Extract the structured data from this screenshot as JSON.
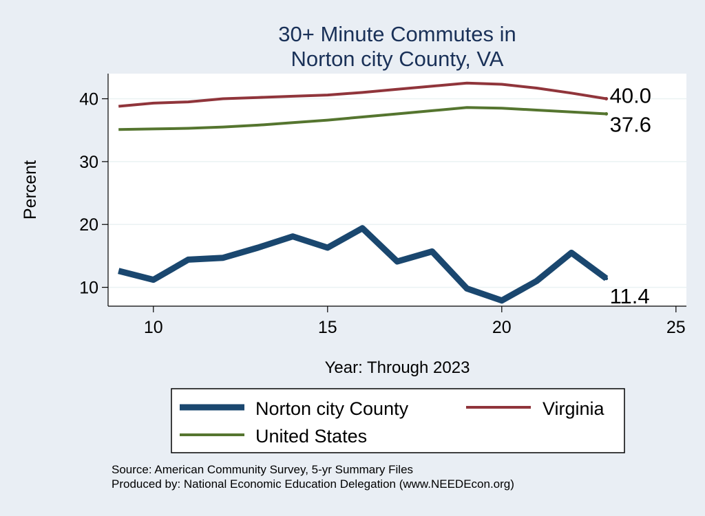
{
  "chart_data": {
    "type": "line",
    "title_lines": [
      "30+ Minute Commutes in",
      "Norton city County, VA"
    ],
    "xlabel": "Year: Through 2023",
    "ylabel": "Percent",
    "xlim": [
      8.7,
      25.3
    ],
    "ylim": [
      7.0,
      44.0
    ],
    "x_ticks": [
      10,
      15,
      20,
      25
    ],
    "y_ticks": [
      10,
      20,
      30,
      40
    ],
    "grid": "horizontal",
    "legend_position": "bottom",
    "x": [
      9,
      10,
      11,
      12,
      13,
      14,
      15,
      16,
      17,
      18,
      19,
      20,
      21,
      22,
      23
    ],
    "series": [
      {
        "name": "Norton city County",
        "color": "#1a476f",
        "values": [
          12.6,
          11.2,
          14.4,
          14.7,
          16.3,
          18.1,
          16.3,
          19.4,
          14.1,
          15.7,
          9.8,
          7.9,
          11.0,
          15.5,
          11.4
        ],
        "end_label": "11.4"
      },
      {
        "name": "Virginia",
        "color": "#90353b",
        "values": [
          38.8,
          39.3,
          39.5,
          40.0,
          40.2,
          40.4,
          40.6,
          41.0,
          41.5,
          42.0,
          42.5,
          42.3,
          41.7,
          40.9,
          40.0
        ],
        "end_label": "40.0"
      },
      {
        "name": "United States",
        "color": "#55752f",
        "values": [
          35.1,
          35.2,
          35.3,
          35.5,
          35.8,
          36.2,
          36.6,
          37.1,
          37.6,
          38.1,
          38.6,
          38.5,
          38.2,
          37.9,
          37.6
        ],
        "end_label": "37.6"
      }
    ],
    "legend": [
      "Norton city County",
      "Virginia",
      "United States"
    ]
  },
  "footer": {
    "source": "Source: American Community Survey, 5-yr Summary Files",
    "produced": "Produced by: National Economic Education Delegation (www.NEEDEcon.org)"
  }
}
